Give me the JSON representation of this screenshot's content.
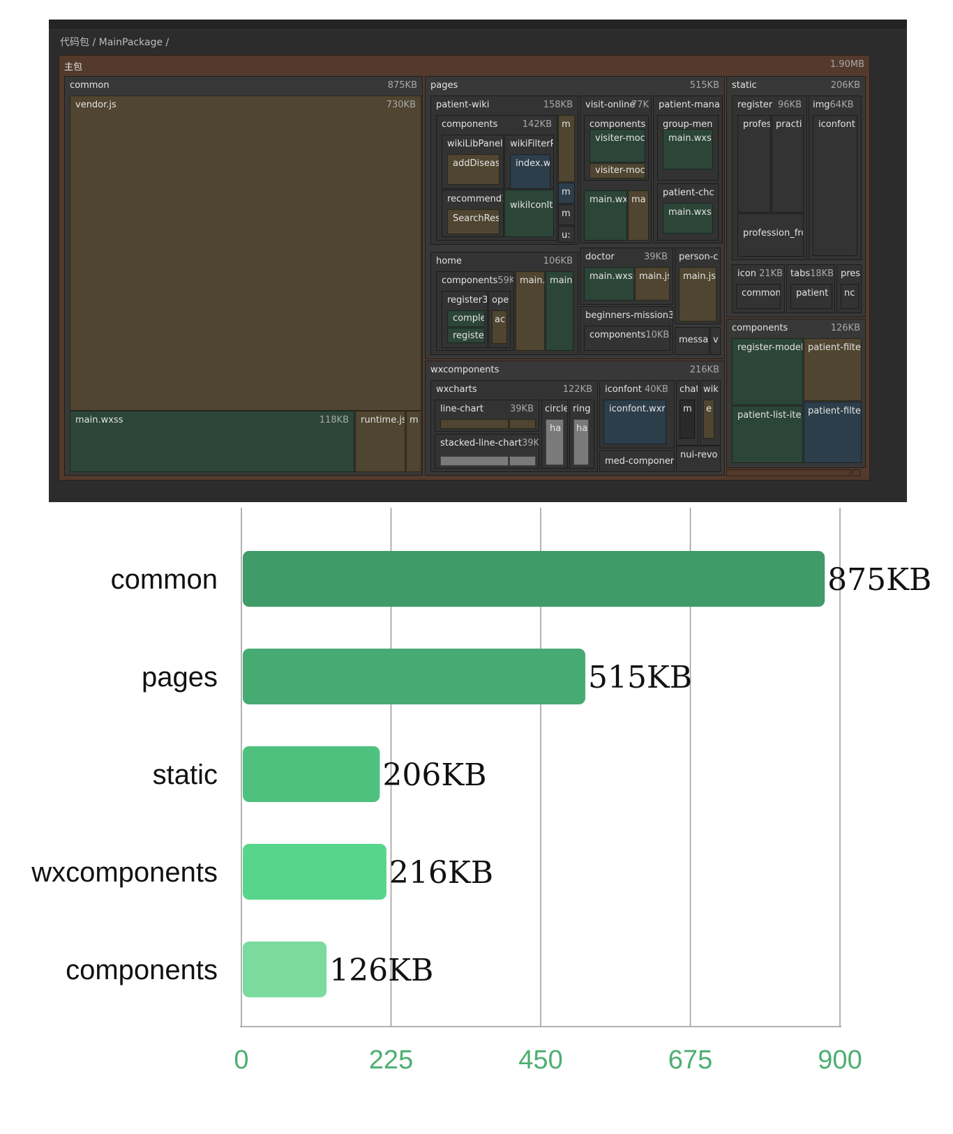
{
  "breadcrumb": "代码包 / MainPackage /",
  "treemap": {
    "root": {
      "label": "主包",
      "size": "1.90MB"
    },
    "common": {
      "label": "common",
      "size": "875KB"
    },
    "vendor": {
      "label": "vendor.js",
      "size": "730KB"
    },
    "common_wxss": {
      "label": "main.wxss",
      "size": "118KB"
    },
    "runtime": {
      "label": "runtime.js"
    },
    "common_m": {
      "label": "m"
    },
    "pages": {
      "label": "pages",
      "size": "515KB"
    },
    "wiki": {
      "label": "patient-wiki",
      "size": "158KB"
    },
    "wiki_comp": {
      "label": "components",
      "size": "142KB"
    },
    "wiki_m": {
      "label": "m"
    },
    "wikiLibPanel": {
      "label": "wikiLibPanel"
    },
    "addDisease": {
      "label": "addDiseas"
    },
    "wikiFilter": {
      "label": "wikiFilterP"
    },
    "wiki_index": {
      "label": "index.w:"
    },
    "recommend": {
      "label": "recommend1"
    },
    "searchRes": {
      "label": "SearchRes"
    },
    "wikiIcon": {
      "label": "wikiIconIte"
    },
    "wiki_m2": {
      "label": "m"
    },
    "wiki_m3": {
      "label": "m"
    },
    "wiki_us": {
      "label": "u:"
    },
    "visit": {
      "label": "visit-online",
      "size": "77K"
    },
    "visit_comp": {
      "label": "components"
    },
    "visiter1": {
      "label": "visiter-moc"
    },
    "visiter2": {
      "label": "visiter-moc"
    },
    "visit_mainwx": {
      "label": "main.wx:"
    },
    "visit_ma": {
      "label": "ma"
    },
    "pmana": {
      "label": "patient-mana"
    },
    "group": {
      "label": "group-men"
    },
    "group_main": {
      "label": "main.wxs"
    },
    "pchc": {
      "label": "patient-chc"
    },
    "pchc_main": {
      "label": "main.wxs"
    },
    "home": {
      "label": "home",
      "size": "106KB"
    },
    "home_comp": {
      "label": "components",
      "size": "59K"
    },
    "home_main1": {
      "label": "main."
    },
    "home_main2": {
      "label": "main"
    },
    "register3": {
      "label": "register3"
    },
    "ope": {
      "label": "ope"
    },
    "comple": {
      "label": "comple"
    },
    "ac": {
      "label": "ac"
    },
    "registe": {
      "label": "registe"
    },
    "doctor": {
      "label": "doctor",
      "size": "39KB"
    },
    "doc_wxss": {
      "label": "main.wxss"
    },
    "doc_js": {
      "label": "main.js"
    },
    "person": {
      "label": "person-c"
    },
    "person_js": {
      "label": "main.js"
    },
    "beginners": {
      "label": "beginners-mission3"
    },
    "beg_comp": {
      "label": "components",
      "size": "10KB"
    },
    "messa": {
      "label": "messa"
    },
    "messa_v": {
      "label": "v"
    },
    "wxcomp": {
      "label": "wxcomponents",
      "size": "216KB"
    },
    "wxcharts": {
      "label": "wxcharts",
      "size": "122KB"
    },
    "linechart": {
      "label": "line-chart",
      "size": "39KB"
    },
    "stacked": {
      "label": "stacked-line-chart",
      "size": "39K"
    },
    "circle": {
      "label": "circle"
    },
    "circle_ha": {
      "label": "ha"
    },
    "ring": {
      "label": "ring"
    },
    "ring_ha": {
      "label": "ha"
    },
    "iconfont": {
      "label": "iconfont",
      "size": "40KB"
    },
    "iconfont_wx": {
      "label": "iconfont.wxr"
    },
    "medcomp": {
      "label": "med-componer"
    },
    "chat": {
      "label": "chat"
    },
    "chat_m": {
      "label": "m"
    },
    "wik": {
      "label": "wik"
    },
    "wik_e": {
      "label": "e"
    },
    "nui": {
      "label": "nui-revo"
    },
    "static": {
      "label": "static",
      "size": "206KB"
    },
    "register": {
      "label": "register",
      "size": "96KB"
    },
    "profes": {
      "label": "profes"
    },
    "practi": {
      "label": "practi"
    },
    "profession": {
      "label": "profession_frc"
    },
    "img": {
      "label": "img",
      "size": "64KB"
    },
    "iconfont2": {
      "label": "iconfont"
    },
    "icon": {
      "label": "icon",
      "size": "21KB"
    },
    "icon_common": {
      "label": "common"
    },
    "tabs": {
      "label": "tabs",
      "size": "18KB"
    },
    "tabs_patient": {
      "label": "patient"
    },
    "pres": {
      "label": "pres"
    },
    "pres_nc": {
      "label": "nc"
    },
    "components": {
      "label": "components",
      "size": "126KB"
    },
    "registerModel": {
      "label": "register-model"
    },
    "pfilter1": {
      "label": "patient-filte"
    },
    "plist": {
      "label": "patient-list-ite"
    },
    "pfilter2": {
      "label": "patient-filte"
    }
  },
  "chart_data": {
    "type": "bar",
    "orientation": "horizontal",
    "categories": [
      "common",
      "pages",
      "static",
      "wxcomponents",
      "components"
    ],
    "values": [
      875,
      515,
      206,
      216,
      126
    ],
    "value_labels": [
      "875KB",
      "515KB",
      "206KB",
      "216KB",
      "126KB"
    ],
    "xlim": [
      0,
      900
    ],
    "xticks": [
      0,
      225,
      450,
      675,
      900
    ],
    "grid": true,
    "colors": [
      "#3f9b68",
      "#46ab72",
      "#4ec17e",
      "#57d68b",
      "#7bdb9f"
    ]
  }
}
